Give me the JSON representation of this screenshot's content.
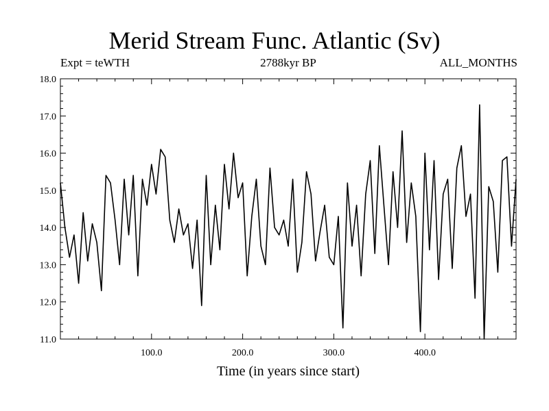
{
  "chart_data": {
    "type": "line",
    "title": "Merid Stream Func. Atlantic (Sv)",
    "subtitle": "2788kyr BP",
    "left_annotation": "Expt = teWTH",
    "right_annotation": "ALL_MONTHS",
    "xlabel": "Time (in years since start)",
    "ylabel": "",
    "xlim": [
      0,
      500
    ],
    "ylim": [
      11.0,
      18.0
    ],
    "xticks": [
      100,
      200,
      300,
      400
    ],
    "xtick_labels": [
      "100.0",
      "200.0",
      "300.0",
      "400.0"
    ],
    "yticks": [
      11,
      12,
      13,
      14,
      15,
      16,
      17,
      18
    ],
    "ytick_labels": [
      "11.0",
      "12.0",
      "13.0",
      "14.0",
      "15.0",
      "16.0",
      "17.0",
      "18.0"
    ],
    "series": [
      {
        "name": "Merid Stream Func. Atlantic",
        "x": [
          0,
          5,
          10,
          15,
          20,
          25,
          30,
          35,
          40,
          45,
          50,
          55,
          60,
          65,
          70,
          75,
          80,
          85,
          90,
          95,
          100,
          105,
          110,
          115,
          120,
          125,
          130,
          135,
          140,
          145,
          150,
          155,
          160,
          165,
          170,
          175,
          180,
          185,
          190,
          195,
          200,
          205,
          210,
          215,
          220,
          225,
          230,
          235,
          240,
          245,
          250,
          255,
          260,
          265,
          270,
          275,
          280,
          285,
          290,
          295,
          300,
          305,
          310,
          315,
          320,
          325,
          330,
          335,
          340,
          345,
          350,
          355,
          360,
          365,
          370,
          375,
          380,
          385,
          390,
          395,
          400,
          405,
          410,
          415,
          420,
          425,
          430,
          435,
          440,
          445,
          450,
          455,
          460,
          465,
          470,
          475,
          480,
          485,
          490,
          495,
          500
        ],
        "values": [
          15.2,
          14.0,
          13.2,
          13.8,
          12.5,
          14.4,
          13.1,
          14.1,
          13.6,
          12.3,
          15.4,
          15.2,
          14.2,
          13.0,
          15.3,
          13.8,
          15.4,
          12.7,
          15.3,
          14.6,
          15.7,
          14.9,
          16.1,
          15.9,
          14.2,
          13.6,
          14.5,
          13.8,
          14.1,
          12.9,
          14.2,
          11.9,
          15.4,
          13.0,
          14.6,
          13.4,
          15.7,
          14.5,
          16.0,
          14.8,
          15.2,
          12.7,
          14.3,
          15.3,
          13.5,
          13.0,
          15.6,
          14.0,
          13.8,
          14.2,
          13.5,
          15.3,
          12.8,
          13.6,
          15.5,
          14.9,
          13.1,
          13.9,
          14.6,
          13.2,
          13.0,
          14.3,
          11.3,
          15.2,
          13.5,
          14.6,
          12.7,
          14.9,
          15.8,
          13.3,
          16.2,
          14.6,
          13.0,
          15.5,
          14.0,
          16.6,
          13.6,
          15.2,
          14.3,
          11.2,
          16.0,
          13.4,
          15.8,
          12.6,
          14.9,
          15.3,
          12.9,
          15.6,
          16.2,
          14.3,
          14.9,
          12.1,
          17.3,
          11.0,
          15.1,
          14.7,
          12.8,
          15.8,
          15.9,
          13.5,
          15.3
        ]
      }
    ]
  }
}
